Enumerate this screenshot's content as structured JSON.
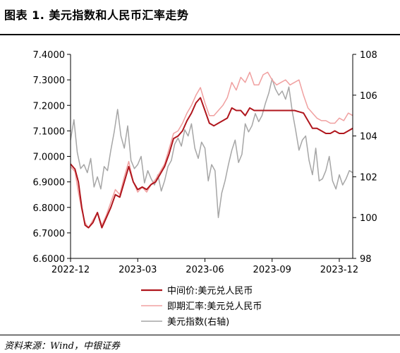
{
  "title": "图表 1. 美元指数和人民币汇率走势",
  "source": "资料来源：Wind，中银证券",
  "colors": {
    "mid": "#b0161d",
    "spot": "#f0a0a0",
    "dxy": "#a6a6a6"
  },
  "chart_data": {
    "type": "line",
    "x_ticks": [
      "2022-12",
      "2023-03",
      "2023-06",
      "2023-09",
      "2023-12"
    ],
    "y_left": {
      "ticks": [
        "6.6000",
        "6.7000",
        "6.8000",
        "6.9000",
        "7.0000",
        "7.1000",
        "7.2000",
        "7.3000",
        "7.4000"
      ],
      "ylim": [
        6.6,
        7.4
      ]
    },
    "y_right": {
      "ticks": [
        "98",
        "100",
        "102",
        "104",
        "106",
        "108"
      ],
      "ylim": [
        98,
        108
      ]
    },
    "x_range": [
      0,
      12.6
    ],
    "legend": [
      {
        "name": "中间价:美元兑人民币",
        "color": "#b0161d",
        "width": 2.2
      },
      {
        "name": "即期汇率:美元兑人民币",
        "color": "#f0a0a0",
        "width": 1.5
      },
      {
        "name": "美元指数(右轴)",
        "color": "#a6a6a6",
        "width": 1.5
      }
    ],
    "series": [
      {
        "name": "中间价:美元兑人民币",
        "axis": "left",
        "x": [
          0.0,
          0.2,
          0.35,
          0.5,
          0.65,
          0.8,
          1.0,
          1.2,
          1.4,
          1.6,
          1.8,
          2.0,
          2.2,
          2.4,
          2.6,
          2.8,
          3.0,
          3.2,
          3.4,
          3.6,
          3.8,
          4.0,
          4.2,
          4.4,
          4.6,
          4.8,
          5.0,
          5.2,
          5.4,
          5.6,
          5.8,
          6.0,
          6.2,
          6.4,
          6.6,
          6.8,
          7.0,
          7.2,
          7.4,
          7.6,
          7.8,
          8.0,
          8.2,
          8.4,
          8.6,
          8.8,
          9.0,
          9.2,
          9.4,
          9.6,
          9.8,
          10.0,
          10.2,
          10.4,
          10.6,
          10.8,
          11.0,
          11.2,
          11.4,
          11.6,
          11.8,
          12.0,
          12.2,
          12.4,
          12.6
        ],
        "y": [
          6.97,
          6.95,
          6.9,
          6.8,
          6.73,
          6.72,
          6.74,
          6.78,
          6.72,
          6.76,
          6.8,
          6.85,
          6.84,
          6.9,
          6.96,
          6.9,
          6.87,
          6.88,
          6.87,
          6.89,
          6.9,
          6.93,
          6.96,
          7.01,
          7.07,
          7.08,
          7.1,
          7.14,
          7.17,
          7.21,
          7.23,
          7.18,
          7.13,
          7.12,
          7.13,
          7.14,
          7.15,
          7.19,
          7.18,
          7.18,
          7.16,
          7.19,
          7.18,
          7.18,
          7.18,
          7.18,
          7.18,
          7.18,
          7.18,
          7.18,
          7.18,
          7.18,
          7.175,
          7.17,
          7.14,
          7.11,
          7.11,
          7.1,
          7.09,
          7.09,
          7.1,
          7.09,
          7.09,
          7.1,
          7.11
        ]
      },
      {
        "name": "即期汇率:美元兑人民币",
        "axis": "left",
        "x": [
          0.0,
          0.2,
          0.35,
          0.5,
          0.65,
          0.8,
          1.0,
          1.2,
          1.4,
          1.6,
          1.8,
          2.0,
          2.2,
          2.4,
          2.6,
          2.8,
          3.0,
          3.2,
          3.4,
          3.6,
          3.8,
          4.0,
          4.2,
          4.4,
          4.6,
          4.8,
          5.0,
          5.2,
          5.4,
          5.6,
          5.8,
          6.0,
          6.2,
          6.4,
          6.6,
          6.8,
          7.0,
          7.2,
          7.4,
          7.6,
          7.8,
          8.0,
          8.2,
          8.4,
          8.6,
          8.8,
          9.0,
          9.2,
          9.4,
          9.6,
          9.8,
          10.0,
          10.2,
          10.4,
          10.6,
          10.8,
          11.0,
          11.2,
          11.4,
          11.6,
          11.8,
          12.0,
          12.2,
          12.4,
          12.6
        ],
        "y": [
          6.96,
          6.94,
          6.86,
          6.79,
          6.74,
          6.72,
          6.75,
          6.78,
          6.73,
          6.77,
          6.82,
          6.87,
          6.85,
          6.92,
          6.98,
          6.9,
          6.86,
          6.88,
          6.86,
          6.89,
          6.91,
          6.94,
          6.97,
          7.03,
          7.09,
          7.1,
          7.13,
          7.17,
          7.2,
          7.24,
          7.27,
          7.21,
          7.16,
          7.16,
          7.18,
          7.2,
          7.23,
          7.29,
          7.26,
          7.31,
          7.29,
          7.33,
          7.28,
          7.28,
          7.32,
          7.33,
          7.3,
          7.28,
          7.29,
          7.3,
          7.28,
          7.29,
          7.3,
          7.24,
          7.19,
          7.17,
          7.15,
          7.14,
          7.14,
          7.13,
          7.13,
          7.15,
          7.14,
          7.17,
          7.16
        ]
      },
      {
        "name": "美元指数(右轴)",
        "axis": "right",
        "x": [
          0.0,
          0.15,
          0.3,
          0.45,
          0.6,
          0.75,
          0.9,
          1.05,
          1.2,
          1.35,
          1.5,
          1.65,
          1.8,
          1.95,
          2.1,
          2.25,
          2.4,
          2.55,
          2.7,
          2.85,
          3.0,
          3.15,
          3.3,
          3.45,
          3.6,
          3.75,
          3.9,
          4.05,
          4.2,
          4.35,
          4.5,
          4.65,
          4.8,
          4.95,
          5.1,
          5.25,
          5.4,
          5.55,
          5.7,
          5.85,
          6.0,
          6.15,
          6.3,
          6.45,
          6.6,
          6.75,
          6.9,
          7.05,
          7.2,
          7.35,
          7.5,
          7.65,
          7.8,
          7.95,
          8.1,
          8.25,
          8.4,
          8.55,
          8.7,
          8.85,
          9.0,
          9.15,
          9.3,
          9.45,
          9.6,
          9.75,
          9.9,
          10.05,
          10.2,
          10.35,
          10.5,
          10.65,
          10.8,
          10.95,
          11.1,
          11.25,
          11.4,
          11.55,
          11.7,
          11.85,
          12.0,
          12.15,
          12.3,
          12.45,
          12.6
        ],
        "y": [
          103.8,
          104.8,
          103.2,
          102.4,
          102.6,
          102.2,
          102.9,
          101.5,
          102.0,
          101.4,
          102.5,
          102.3,
          103.3,
          104.2,
          105.3,
          104.0,
          103.4,
          104.5,
          102.8,
          102.4,
          102.6,
          103.0,
          101.7,
          102.3,
          101.9,
          101.6,
          102.1,
          101.3,
          101.8,
          102.5,
          102.8,
          103.6,
          103.9,
          103.5,
          104.3,
          104.0,
          104.6,
          103.4,
          102.9,
          103.7,
          103.4,
          101.8,
          102.6,
          102.3,
          100.0,
          101.2,
          101.8,
          102.6,
          103.3,
          103.8,
          102.7,
          103.1,
          104.6,
          104.2,
          104.5,
          105.1,
          104.7,
          105.0,
          105.6,
          106.1,
          106.8,
          106.3,
          106.0,
          106.2,
          105.8,
          106.4,
          105.2,
          104.3,
          103.3,
          103.8,
          104.0,
          102.8,
          102.1,
          103.4,
          101.8,
          101.9,
          102.3,
          103.0,
          101.8,
          101.4,
          102.1,
          101.6,
          101.9,
          102.3,
          102.2
        ]
      }
    ]
  }
}
